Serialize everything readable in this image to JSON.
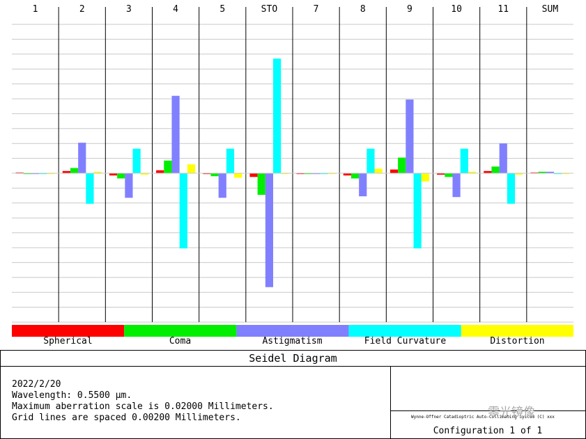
{
  "chart_data": {
    "type": "bar",
    "title": "Seidel Diagram",
    "categories": [
      "1",
      "2",
      "3",
      "4",
      "5",
      "STO",
      "7",
      "8",
      "9",
      "10",
      "11",
      "SUM"
    ],
    "series": [
      {
        "name": "Spherical",
        "color": "#ff0000",
        "values": [
          0.0001,
          0.0003,
          -0.0003,
          0.0004,
          -0.0001,
          -0.0005,
          0.0,
          -0.0003,
          0.0005,
          -0.0002,
          0.0003,
          0.0001
        ]
      },
      {
        "name": "Coma",
        "color": "#00ee00",
        "values": [
          0.0,
          0.0007,
          -0.0007,
          0.0017,
          -0.0004,
          -0.0029,
          0.0,
          -0.0007,
          0.0021,
          -0.0005,
          0.0009,
          0.0002
        ]
      },
      {
        "name": "Astigmatism",
        "color": "#8080ff",
        "values": [
          0.0,
          0.0041,
          -0.0033,
          0.0104,
          -0.0033,
          -0.0153,
          0.0,
          -0.0031,
          0.0099,
          -0.0032,
          0.004,
          0.0002
        ]
      },
      {
        "name": "Field Curvature",
        "color": "#00ffff",
        "values": [
          0.0,
          -0.0041,
          0.0033,
          -0.0101,
          0.0033,
          0.0154,
          0.0,
          0.0033,
          -0.0101,
          0.0033,
          -0.0041,
          -0.0001
        ]
      },
      {
        "name": "Distortion",
        "color": "#ffff00",
        "values": [
          0.0,
          0.0002,
          -0.0002,
          0.0012,
          -0.0006,
          0.0,
          0.0,
          0.0006,
          -0.0011,
          0.0002,
          -0.0002,
          0.0
        ]
      }
    ],
    "ylim": [
      -0.02,
      0.02
    ],
    "grid_spacing": 0.002,
    "grid": true,
    "legend": "bottom"
  },
  "legend_labels": [
    "Spherical",
    "Coma",
    "Astigmatism",
    "Field Curvature",
    "Distortion"
  ],
  "diagram_title": "Seidel Diagram",
  "notes": {
    "date": "2022/2/20",
    "wavelength": "Wavelength: 0.5500 µm.",
    "scale": "Maximum aberration scale is 0.02000 Millimeters.",
    "grid": "Grid lines are spaced 0.00200 Millimeters."
  },
  "lens_title": "Wynne-Offner Catadioptric Auto-Collimating System (C) xxx",
  "configuration": "Configuration 1 of 1",
  "watermark": "零光镜像"
}
